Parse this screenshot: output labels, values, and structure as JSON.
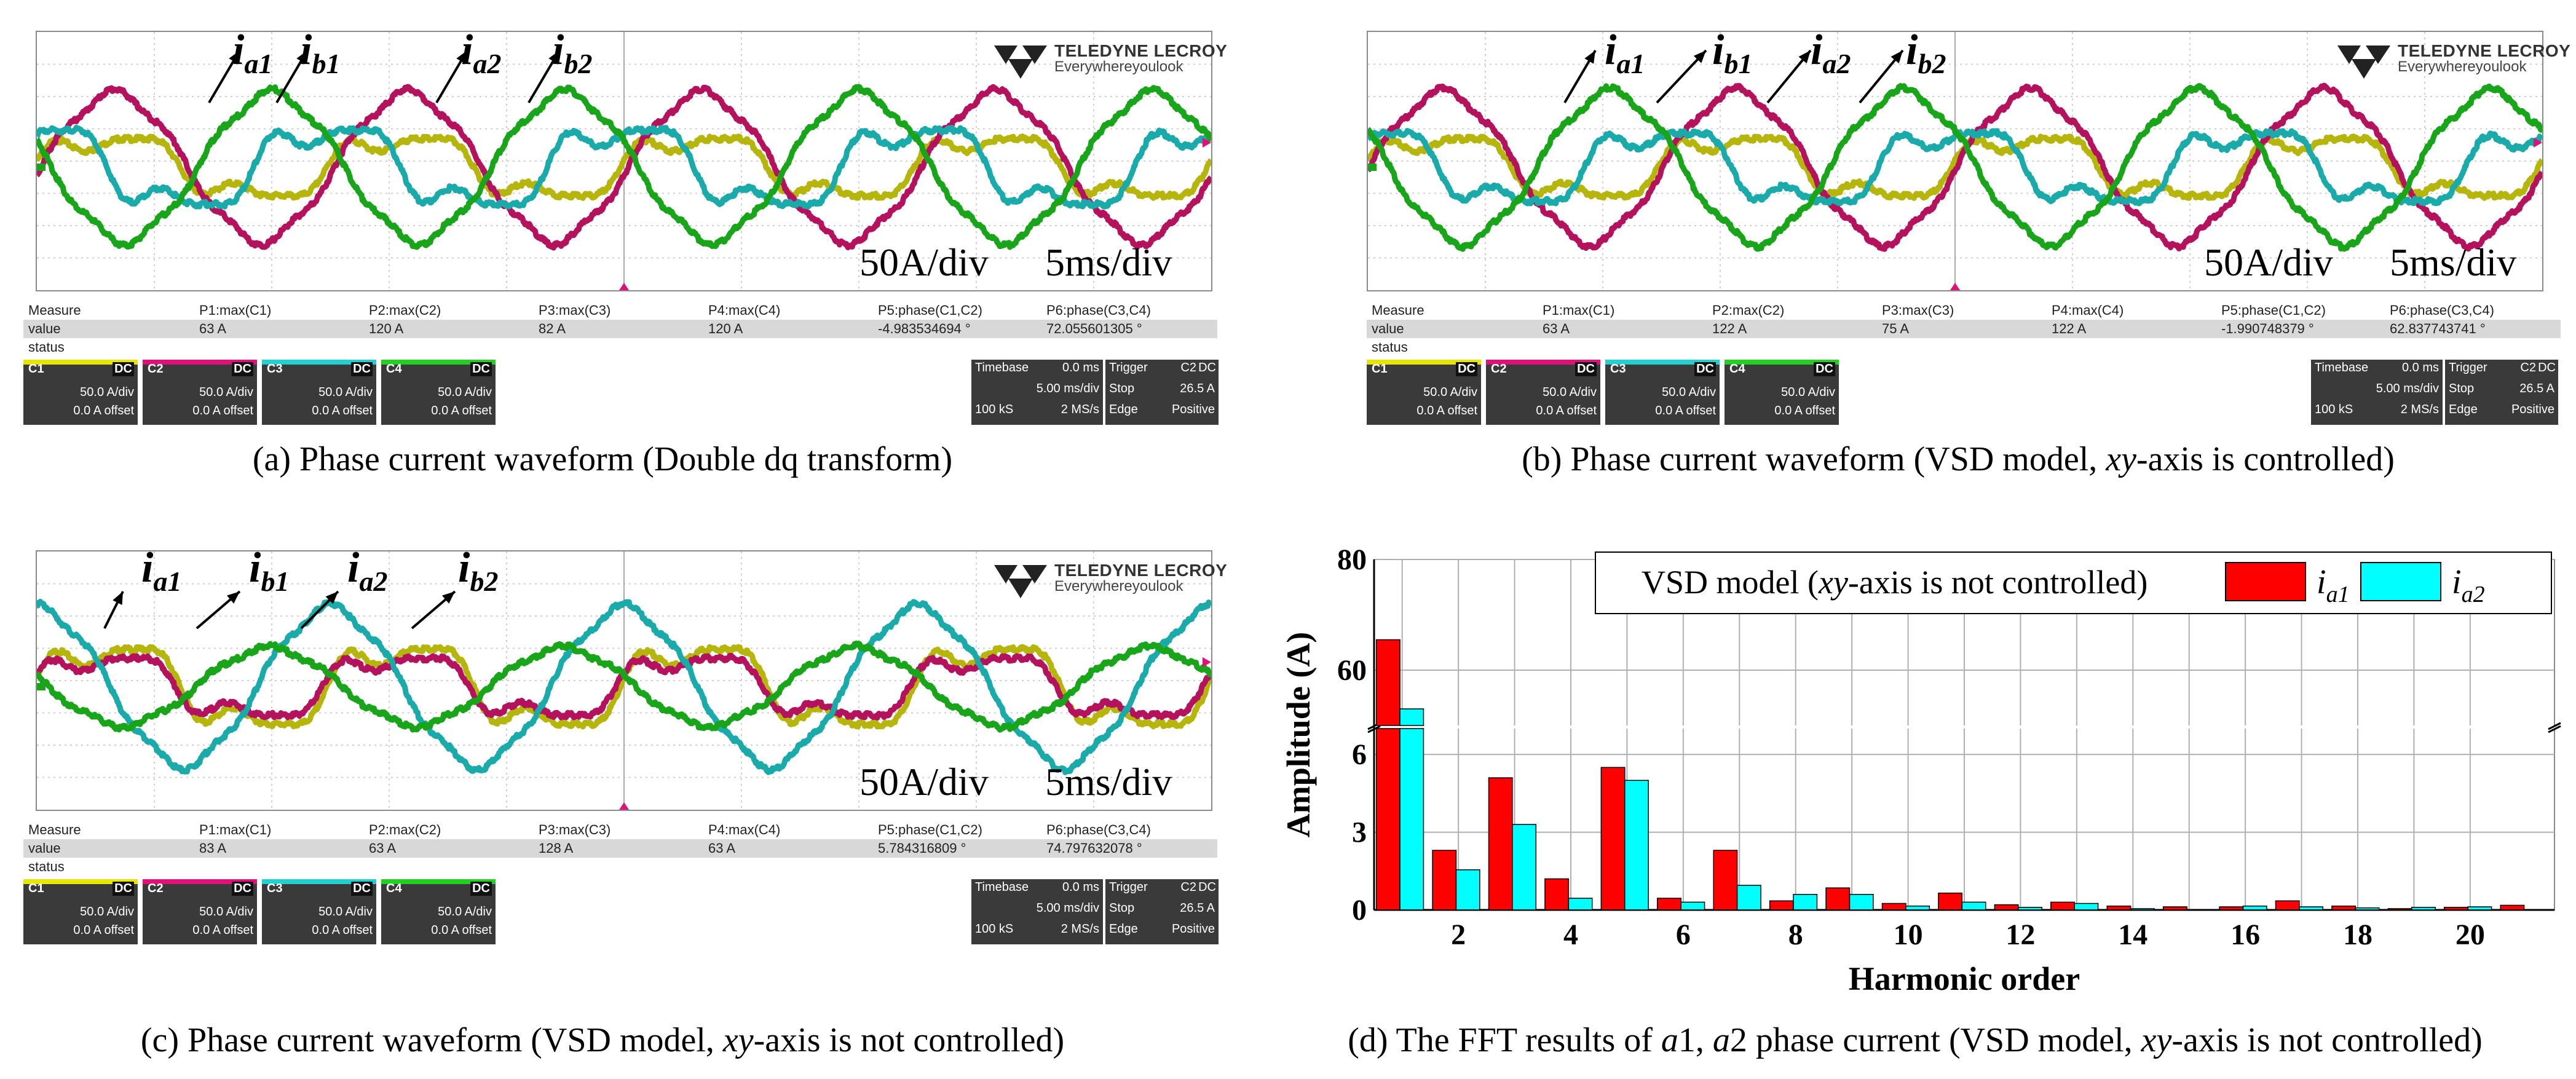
{
  "colors": {
    "C1": "#b5b50c",
    "C2": "#b5125e",
    "C3": "#1aaaaa",
    "C4": "#19a519",
    "bar_ia1": "#ff0000",
    "bar_ia2": "#00ffff"
  },
  "logo": {
    "brand": "TELEDYNE LECROY",
    "tagline": "Everywhereyoulook"
  },
  "icons": {
    "logo_mark": "teledyne-logo-icon",
    "trigger": "trigger-marker-icon",
    "level": "ground-level-icon"
  },
  "scope_common": {
    "measure_label": "Measure",
    "value_label": "value",
    "status_label": "status",
    "measure_names": [
      "P1:max(C1)",
      "P2:max(C2)",
      "P3:max(C3)",
      "P4:max(C4)",
      "P5:phase(C1,C2)",
      "P6:phase(C3,C4)"
    ],
    "channels": [
      {
        "name": "C1",
        "coupling": "DC",
        "scale": "50.0 A/div",
        "offset": "0.0 A offset"
      },
      {
        "name": "C2",
        "coupling": "DC",
        "scale": "50.0 A/div",
        "offset": "0.0 A offset"
      },
      {
        "name": "C3",
        "coupling": "DC",
        "scale": "50.0 A/div",
        "offset": "0.0 A offset"
      },
      {
        "name": "C4",
        "coupling": "DC",
        "scale": "50.0 A/div",
        "offset": "0.0 A offset"
      }
    ],
    "timebase": {
      "label": "Timebase",
      "delay": "0.0 ms",
      "per_div": "5.00 ms/div",
      "samples": "100 kS",
      "rate": "2 MS/s"
    },
    "trigger": {
      "label": "Trigger",
      "source": "C2",
      "coupling": "DC",
      "mode": "Stop",
      "level": "26.5 A",
      "type": "Edge",
      "slope": "Positive"
    },
    "current_scale": "50A/div",
    "time_scale": "5ms/div"
  },
  "panels": {
    "a": {
      "caption": "(a) Phase current waveform (Double dq transform)",
      "values": [
        "63 A",
        "120 A",
        "82 A",
        "120 A",
        "-4.983534694 °",
        "72.055601305 °"
      ],
      "labels": [
        {
          "sym": "i",
          "sub": "a1"
        },
        {
          "sym": "i",
          "sub": "b1"
        },
        {
          "sym": "i",
          "sub": "a2"
        },
        {
          "sym": "i",
          "sub": "b2"
        }
      ]
    },
    "b": {
      "caption_pre": "(b) Phase current waveform (VSD model, ",
      "caption_em": "xy",
      "caption_post": "-axis is controlled)",
      "values": [
        "63 A",
        "122 A",
        "75 A",
        "122 A",
        "-1.990748379 °",
        "62.837743741 °"
      ],
      "labels": [
        {
          "sym": "i",
          "sub": "a1"
        },
        {
          "sym": "i",
          "sub": "b1"
        },
        {
          "sym": "i",
          "sub": "a2"
        },
        {
          "sym": "i",
          "sub": "b2"
        }
      ]
    },
    "c": {
      "caption_pre": "(c) Phase current waveform (VSD model, ",
      "caption_em": "xy",
      "caption_post": "-axis is not controlled)",
      "values": [
        "83 A",
        "63 A",
        "128 A",
        "63 A",
        "5.784316809 °",
        "74.797632078 °"
      ],
      "labels": [
        {
          "sym": "i",
          "sub": "a1"
        },
        {
          "sym": "i",
          "sub": "b1"
        },
        {
          "sym": "i",
          "sub": "a2"
        },
        {
          "sym": "i",
          "sub": "b2"
        }
      ]
    },
    "d": {
      "caption_pre": "(d) The FFT results of ",
      "caption_em1": "a",
      "caption_mid1": "1, ",
      "caption_em2": "a",
      "caption_mid2": "2 phase current (VSD model, ",
      "caption_em3": "xy",
      "caption_post": "-axis is not controlled)"
    }
  },
  "chart_data": [
    {
      "type": "line",
      "panel": "a",
      "title": "Phase current waveform (Double dq transform)",
      "xlabel": "Time (5 ms/div)",
      "ylabel": "Current (50 A/div)",
      "x_range_ms": [
        0,
        50
      ],
      "y_range_A": [
        -200,
        200
      ],
      "series": [
        {
          "name": "C1",
          "peak_A": 63,
          "phase_deg": 0,
          "harmonic_shaped": true
        },
        {
          "name": "C2",
          "peak_A": 120,
          "phase_deg": -5
        },
        {
          "name": "C3",
          "peak_A": 82,
          "phase_deg": 90,
          "harmonic_shaped": true
        },
        {
          "name": "C4",
          "peak_A": 120,
          "phase_deg": 162
        }
      ],
      "period_ms": 12.5
    },
    {
      "type": "line",
      "panel": "b",
      "title": "Phase current waveform (VSD model, xy-axis is controlled)",
      "xlabel": "Time (5 ms/div)",
      "ylabel": "Current (50 A/div)",
      "x_range_ms": [
        0,
        50
      ],
      "y_range_A": [
        -200,
        200
      ],
      "series": [
        {
          "name": "C1",
          "peak_A": 63,
          "phase_deg": 0,
          "harmonic_shaped": true
        },
        {
          "name": "C2",
          "peak_A": 122,
          "phase_deg": -2
        },
        {
          "name": "C3",
          "peak_A": 75,
          "phase_deg": 90,
          "harmonic_shaped": true
        },
        {
          "name": "C4",
          "peak_A": 122,
          "phase_deg": 153
        }
      ],
      "period_ms": 12.5
    },
    {
      "type": "line",
      "panel": "c",
      "title": "Phase current waveform (VSD model, xy-axis is not controlled)",
      "xlabel": "Time (5 ms/div)",
      "ylabel": "Current (50 A/div)",
      "x_range_ms": [
        0,
        50
      ],
      "y_range_A": [
        -200,
        200
      ],
      "series": [
        {
          "name": "C1",
          "peak_A": 83,
          "phase_deg": 0,
          "harmonic_shaped": true
        },
        {
          "name": "C2",
          "peak_A": 63,
          "phase_deg": 6,
          "harmonic_shaped": true
        },
        {
          "name": "C3",
          "peak_A": 128,
          "phase_deg": 90
        },
        {
          "name": "C4",
          "peak_A": 63,
          "phase_deg": 165
        }
      ],
      "period_ms": 12.5
    },
    {
      "type": "bar",
      "panel": "d",
      "title": "VSD model (xy-axis is not controlled)",
      "xlabel": "Harmonic order",
      "ylabel": "Amplitude (A)",
      "categories": [
        1,
        2,
        3,
        4,
        5,
        6,
        7,
        8,
        9,
        10,
        11,
        12,
        13,
        14,
        15,
        16,
        17,
        18,
        19,
        20,
        21
      ],
      "xticks": [
        "2",
        "4",
        "6",
        "8",
        "10",
        "12",
        "14",
        "16",
        "18",
        "20"
      ],
      "yticks_lower": [
        "0",
        "3",
        "6"
      ],
      "yticks_upper": [
        "60",
        "80"
      ],
      "broken_axis": {
        "lower": [
          0,
          7
        ],
        "upper": [
          50,
          80
        ]
      },
      "series": [
        {
          "name": "i",
          "sub": "a1",
          "values": [
            65.5,
            2.3,
            5.1,
            1.2,
            5.5,
            0.45,
            2.3,
            0.35,
            0.85,
            0.25,
            0.65,
            0.2,
            0.3,
            0.15,
            0.12,
            0.12,
            0.35,
            0.15,
            0.05,
            0.1,
            0.18
          ]
        },
        {
          "name": "i",
          "sub": "a2",
          "values": [
            53.0,
            1.55,
            3.3,
            0.45,
            5.0,
            0.3,
            0.95,
            0.6,
            0.6,
            0.15,
            0.3,
            0.1,
            0.25,
            0.05,
            0.0,
            0.15,
            0.12,
            0.08,
            0.1,
            0.12,
            0.0
          ]
        }
      ]
    }
  ]
}
